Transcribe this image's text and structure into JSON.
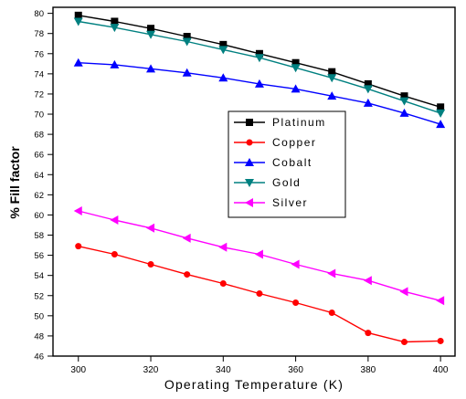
{
  "chart_data": {
    "type": "line",
    "title": "",
    "xlabel": "Operating Temperature (K)",
    "ylabel": "% Fill factor",
    "xlim": [
      293,
      404
    ],
    "ylim": [
      46,
      80.6
    ],
    "x_ticks": [
      300,
      320,
      340,
      360,
      380,
      400
    ],
    "y_ticks": [
      46,
      48,
      50,
      52,
      54,
      56,
      58,
      60,
      62,
      64,
      66,
      68,
      70,
      72,
      74,
      76,
      78,
      80
    ],
    "x": [
      300,
      310,
      320,
      330,
      340,
      350,
      360,
      370,
      380,
      390,
      400
    ],
    "grid": false,
    "legend_position": "center",
    "series": [
      {
        "name": "Platinum",
        "color": "#000000",
        "marker": "square",
        "values": [
          79.8,
          79.2,
          78.5,
          77.7,
          76.9,
          76.0,
          75.1,
          74.2,
          73.0,
          71.8,
          70.7
        ]
      },
      {
        "name": "Copper",
        "color": "#ff0000",
        "marker": "circle",
        "values": [
          56.9,
          56.1,
          55.1,
          54.1,
          53.2,
          52.2,
          51.3,
          50.3,
          48.3,
          47.4,
          47.5
        ]
      },
      {
        "name": "Cobalt",
        "color": "#0000ff",
        "marker": "triangle-up",
        "values": [
          75.1,
          74.9,
          74.5,
          74.1,
          73.6,
          73.0,
          72.5,
          71.8,
          71.1,
          70.1,
          69.0
        ]
      },
      {
        "name": "Gold",
        "color": "#008080",
        "marker": "triangle-down",
        "values": [
          79.2,
          78.6,
          77.9,
          77.2,
          76.4,
          75.6,
          74.6,
          73.6,
          72.5,
          71.3,
          70.1
        ]
      },
      {
        "name": "Silver",
        "color": "#ff00ff",
        "marker": "triangle-left",
        "values": [
          60.4,
          59.5,
          58.7,
          57.7,
          56.8,
          56.1,
          55.1,
          54.2,
          53.5,
          52.4,
          51.5
        ]
      }
    ]
  }
}
